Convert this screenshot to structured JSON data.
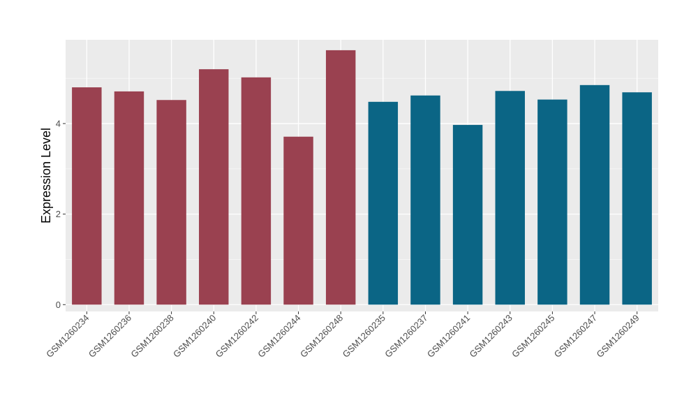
{
  "chart_data": {
    "type": "bar",
    "title": "",
    "xlabel": "",
    "ylabel": "Expression Level",
    "ylim": [
      -0.15,
      5.85
    ],
    "yticks": [
      0,
      2,
      4
    ],
    "grid": true,
    "legend": "none",
    "categories": [
      "GSM1260234",
      "GSM1260236",
      "GSM1260238",
      "GSM1260240",
      "GSM1260242",
      "GSM1260244",
      "GSM1260248",
      "GSM1260235",
      "GSM1260237",
      "GSM1260241",
      "GSM1260243",
      "GSM1260245",
      "GSM1260247",
      "GSM1260249"
    ],
    "values": [
      4.8,
      4.71,
      4.52,
      5.2,
      5.02,
      3.71,
      5.62,
      4.48,
      4.62,
      3.97,
      4.72,
      4.53,
      4.85,
      4.69
    ],
    "bar_colors": [
      "#9a4150",
      "#9a4150",
      "#9a4150",
      "#9a4150",
      "#9a4150",
      "#9a4150",
      "#9a4150",
      "#0b6585",
      "#0b6585",
      "#0b6585",
      "#0b6585",
      "#0b6585",
      "#0b6585",
      "#0b6585"
    ]
  },
  "colors": {
    "panel_background": "#ebebeb",
    "grid_major": "#ffffff",
    "grid_minor": "#f5f5f5",
    "tick_color": "#333333"
  }
}
